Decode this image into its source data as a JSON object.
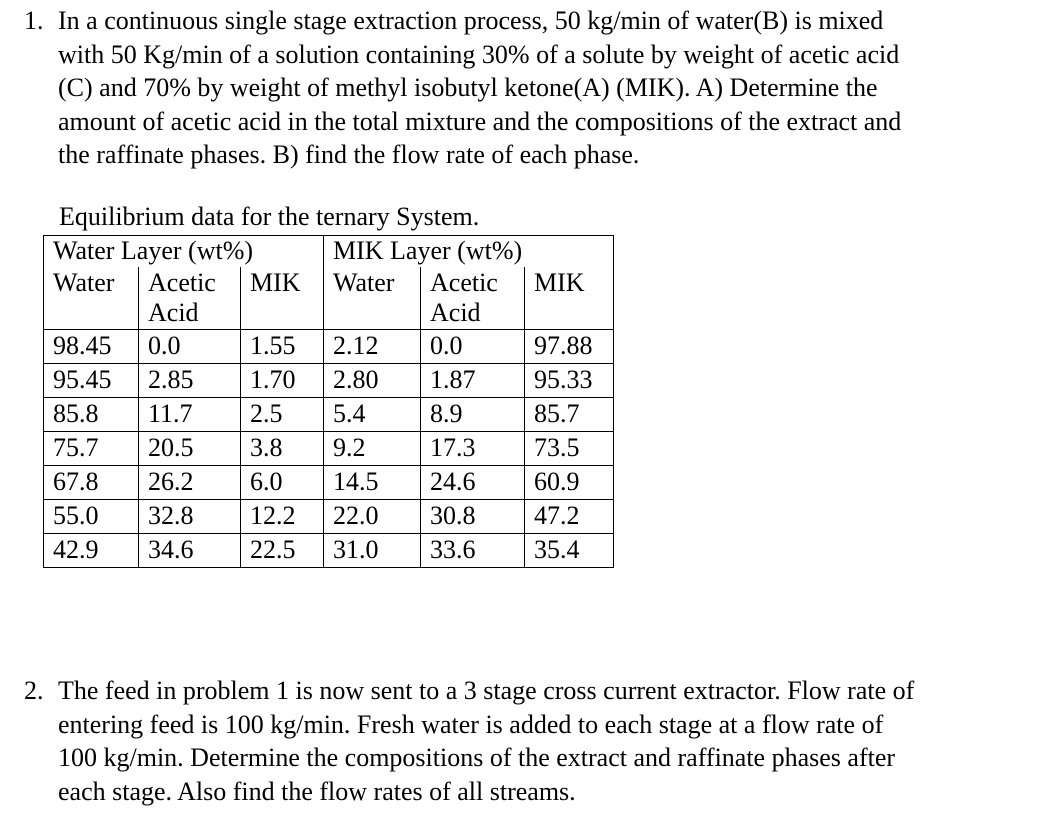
{
  "problem1": {
    "number": "1.",
    "lines": [
      "In a continuous single stage extraction process, 50 kg/min of water(B) is mixed",
      "with 50 Kg/min of a solution containing 30% of a solute by weight of acetic acid",
      "(C) and 70% by weight of methyl isobutyl ketone(A) (MIK). A) Determine the",
      "amount of acetic acid in the total mixture and the compositions of the extract and",
      "the raffinate phases. B) find the flow rate of each phase."
    ]
  },
  "table": {
    "caption": "Equilibrium data for the ternary System.",
    "groups": [
      "Water Layer (wt%)",
      "MIK Layer (wt%)"
    ],
    "columns": [
      [
        "Water"
      ],
      [
        "Acetic",
        "Acid"
      ],
      [
        "MIK"
      ],
      [
        "Water"
      ],
      [
        "Acetic",
        "Acid"
      ],
      [
        "MIK"
      ]
    ],
    "rows": [
      [
        "98.45",
        "0.0",
        "1.55",
        "2.12",
        "0.0",
        "97.88"
      ],
      [
        "95.45",
        "2.85",
        "1.70",
        "2.80",
        "1.87",
        "95.33"
      ],
      [
        "85.8",
        "11.7",
        "2.5",
        "5.4",
        "8.9",
        "85.7"
      ],
      [
        "75.7",
        "20.5",
        "3.8",
        "9.2",
        "17.3",
        "73.5"
      ],
      [
        "67.8",
        "26.2",
        "6.0",
        "14.5",
        "24.6",
        "60.9"
      ],
      [
        "55.0",
        "32.8",
        "12.2",
        "22.0",
        "30.8",
        "47.2"
      ],
      [
        "42.9",
        "34.6",
        "22.5",
        "31.0",
        "33.6",
        "35.4"
      ]
    ]
  },
  "problem2": {
    "number": "2.",
    "lines": [
      "The feed in problem 1 is now sent to a 3 stage cross current extractor. Flow rate of",
      "entering feed is 100 kg/min. Fresh water is added to each stage at a flow rate of",
      "100 kg/min. Determine the compositions of the extract and raffinate phases after",
      "each stage. Also find the flow rates of all streams."
    ]
  }
}
